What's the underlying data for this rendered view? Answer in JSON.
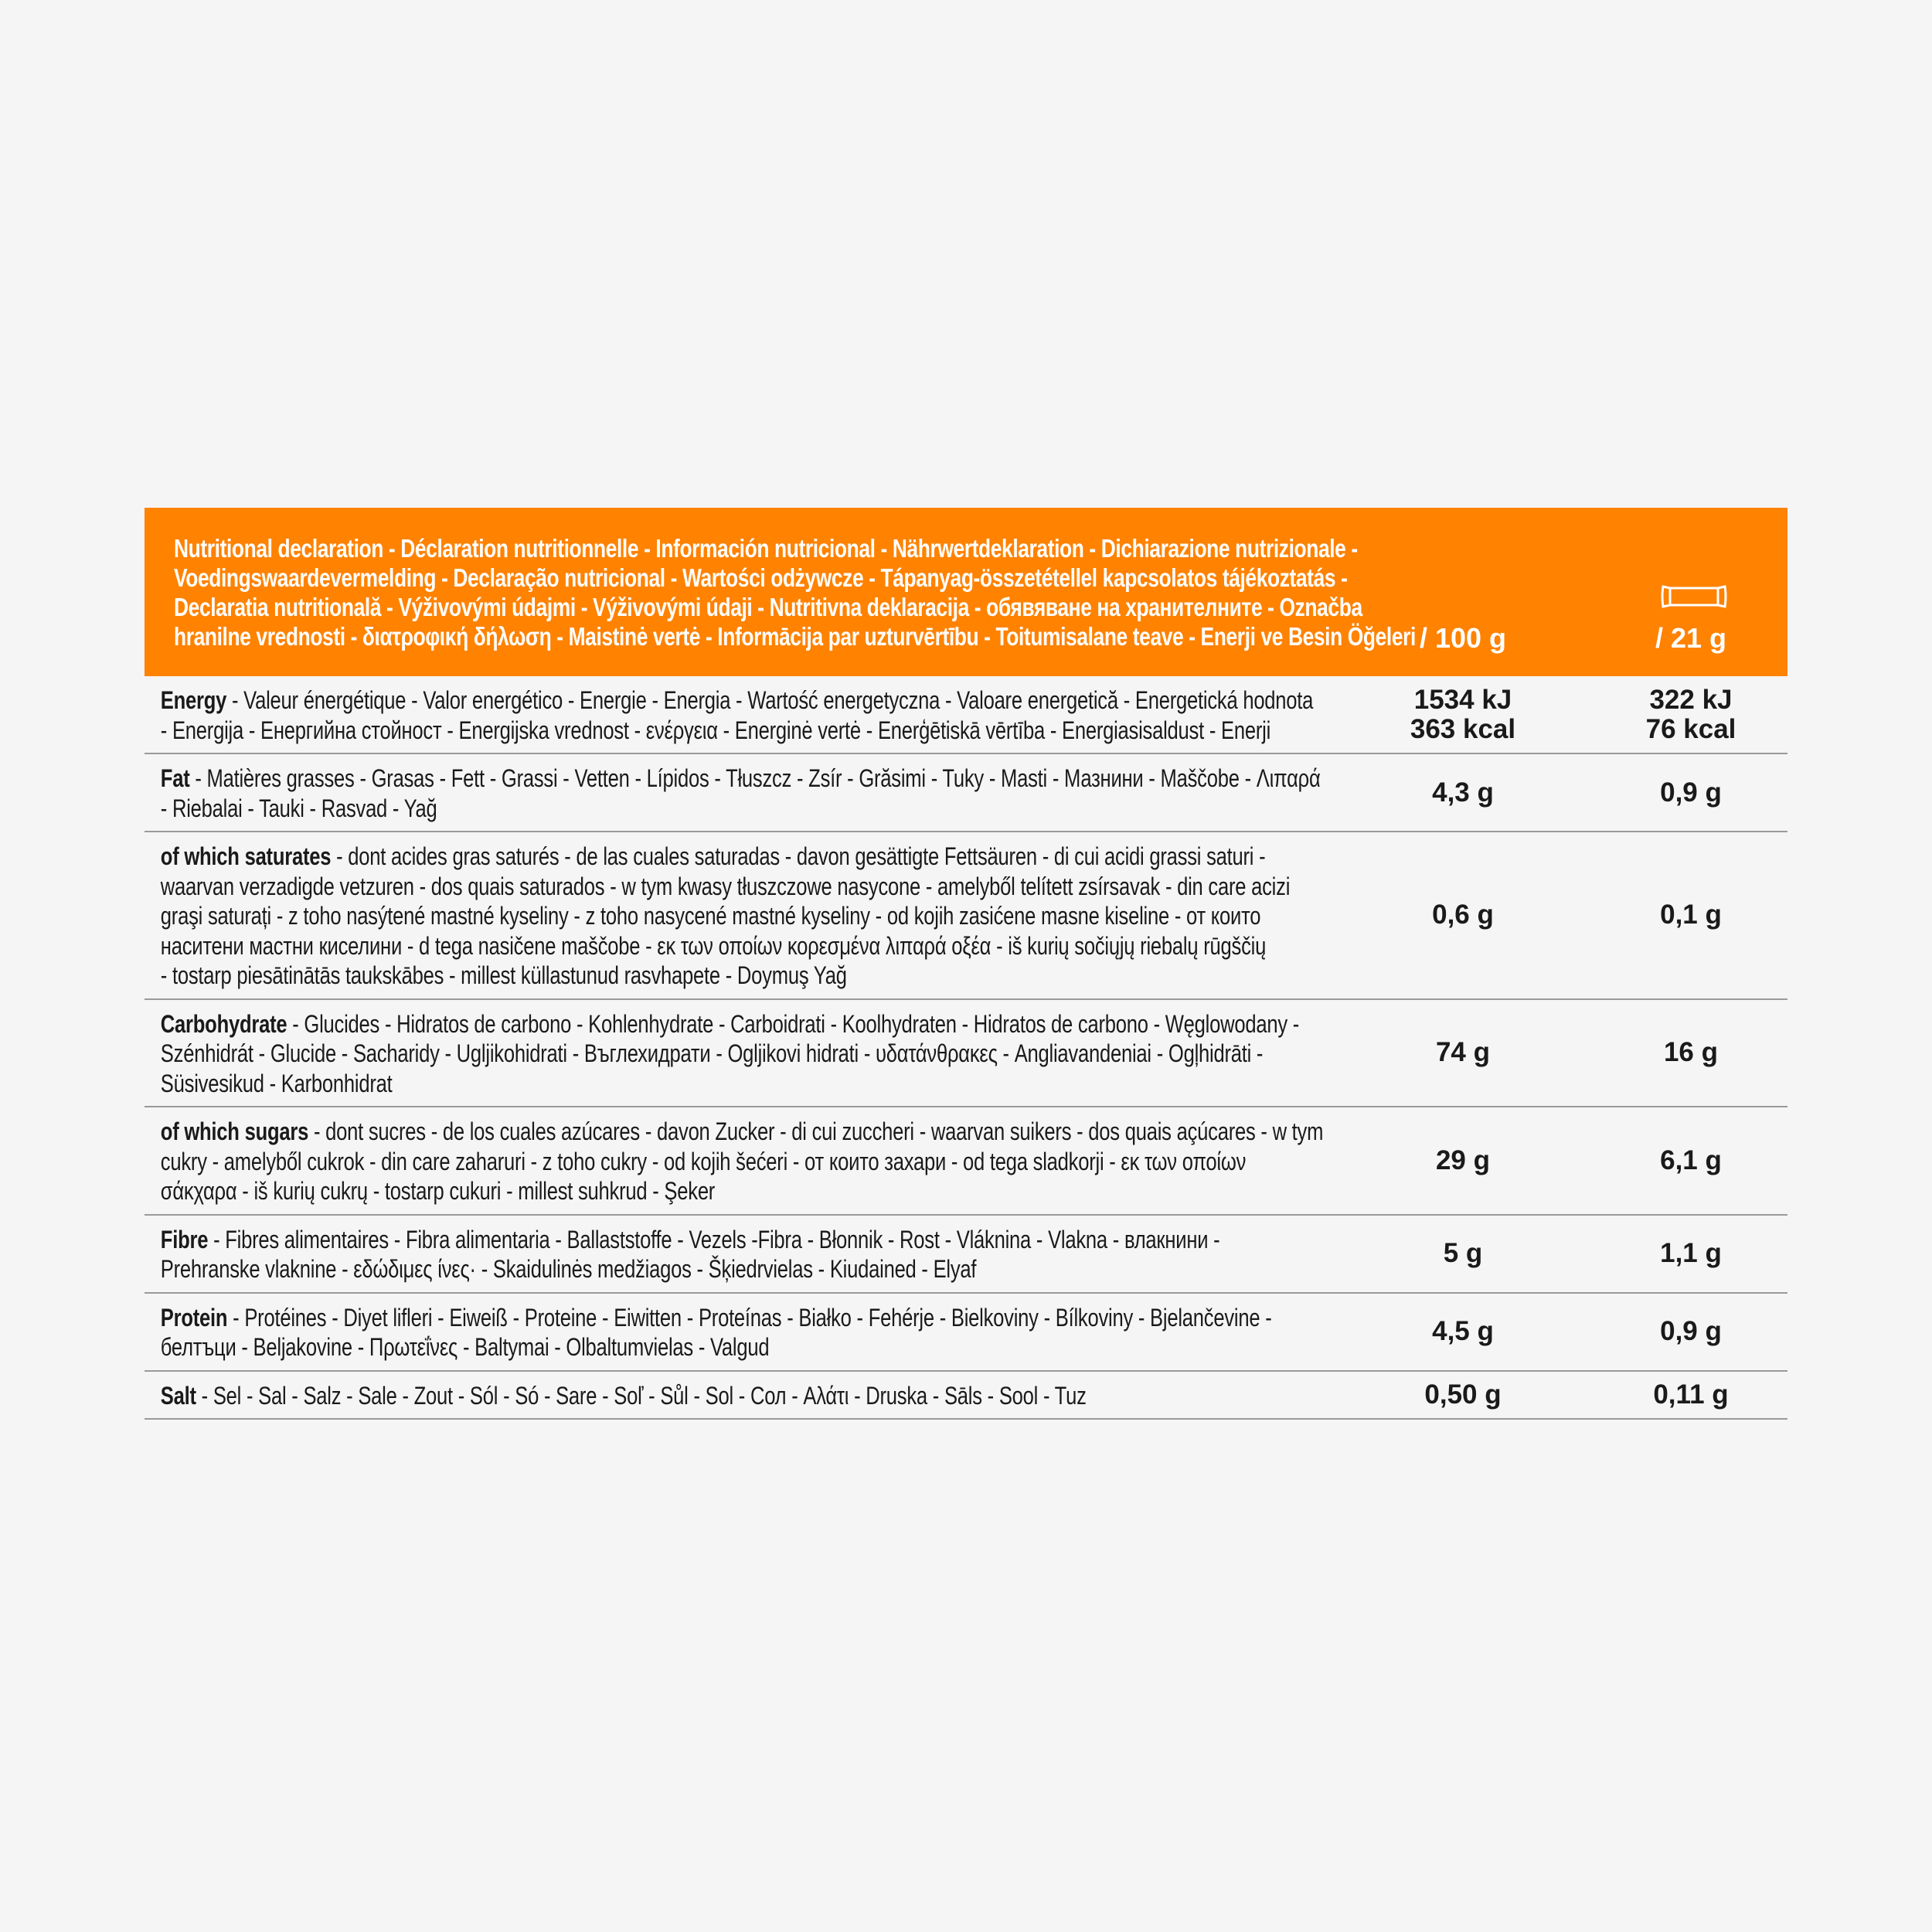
{
  "colors": {
    "header_bg": "#ff8200",
    "header_text": "#ffffff",
    "divider": "#9a9a9a"
  },
  "header": {
    "title_lines": [
      "Nutritional declaration - Déclaration nutritionnelle - Información nutricional - Nährwertdeklaration - Dichiarazione nutrizionale -",
      "Voedingswaardevermelding - Declaração nutricional - Wartości odżywcze - Tápanyag-összetétellel kapcsolatos tájékoztatás  -",
      "Declaratia nutritională - Výživovými údajmi - Výživovými údaji - Nutritivna deklaracija - обявяване на хранителните - Označba",
      "hranilne vrednosti - διατροφική δήλωση - Maistinė vertė - Informācija par uzturvērtību - Toitumisalane teave - Enerji ve Besin Öğeleri"
    ],
    "col1": "/ 100 g",
    "col2": "/ 21 g",
    "col2_icon": "snack-bar-icon"
  },
  "rows": [
    {
      "name": "Energy",
      "lines": [
        " - Valeur énergétique - Valor energético - Energie - Energia - Wartość energetyczna - Valoare energetică - Energetická hodnota",
        "- Energija  - Енергийна стойност - Energijska vrednost - ενέργεια - Energinė vertė - Enerģētiskā vērtība - Energiasisaldust - Enerji"
      ],
      "v1": [
        "1534 kJ",
        "363 kcal"
      ],
      "v2": [
        "322 kJ",
        "76 kcal"
      ]
    },
    {
      "name": "Fat",
      "lines": [
        " - Matières grasses - Grasas - Fett - Grassi - Vetten - Lípidos - Tłuszcz - Zsír - Grăsimi  - Tuky - Masti - Мазнини - Maščobe - Λιπαρά",
        "- Riebalai - Tauki - Rasvad - Yağ"
      ],
      "v1": [
        "4,3 g"
      ],
      "v2": [
        "0,9 g"
      ]
    },
    {
      "name": "of which saturates",
      "lines": [
        " - dont acides gras saturés - de las cuales saturadas  - davon gesättigte Fettsäuren - di cui acidi grassi saturi -",
        "waarvan verzadigde vetzuren - dos quais saturados - w tym kwasy tłuszczowe nasycone - amelyből telített zsírsavak - din care acizi",
        "graşi saturați - z toho nasýtené mastné kyseliny  - z toho nasycené mastné kyseliny - od kojih zasićene masne kiseline - от които",
        "наситени мастни киселини - d tega nasičene maščobe - εκ των οποίων κορεσμένα λιπαρά οξέα - iš kurių sočiųjų riebalų rūgščių",
        "- tostarp piesātinātās taukskābes - millest küllastunud rasvhapete - Doymuş Yağ"
      ],
      "v1": [
        "0,6 g"
      ],
      "v2": [
        "0,1 g"
      ]
    },
    {
      "name": "Carbohydrate",
      "lines": [
        " - Glucides - Hidratos de carbono - Kohlenhydrate - Carboidrati - Koolhydraten - Hidratos de carbono - Węglowodany -",
        "Szénhidrát - Glucide - Sacharidy - Ugljikohidrati - Въглехидрати - Ogljikovi hidrati - υδατάνθρακες - Angliavandeniai - Ogļhidrāti -",
        "Süsivesikud - Karbonhidrat"
      ],
      "v1": [
        "74 g"
      ],
      "v2": [
        "16 g"
      ]
    },
    {
      "name": "of which sugars",
      "lines": [
        " - dont sucres - de los cuales azúcares - davon Zucker - di cui zuccheri - waarvan suikers - dos quais açúcares - w tym",
        "cukry - amelyből cukrok  - din care zaharuri - z toho cukry - od kojih šećeri - от които захари - od tega sladkorji - εκ των οποίων",
        "σάκχαρα - iš kurių cukrų - tostarp cukuri - millest suhkrud - Şeker"
      ],
      "v1": [
        "29 g"
      ],
      "v2": [
        "6,1 g"
      ]
    },
    {
      "name": "Fibre",
      "lines": [
        " - Fibres alimentaires - Fibra alimentaria - Ballaststoffe - Vezels -Fibra - Błonnik - Rost - Vláknina - Vlakna - влакнини -",
        "Prehranske vlaknine - εδώδιμες ίνες· - Skaidulinės medžiagos - Šķiedrvielas - Kiudained - Elyaf"
      ],
      "v1": [
        "5 g"
      ],
      "v2": [
        "1,1 g"
      ]
    },
    {
      "name": "Protein",
      "lines": [
        " - Protéines - Diyet lifleri - Eiweiß - Proteine - Eiwitten - Proteínas - Białko - Fehérje - Bielkoviny - Bílkoviny - Bjelančevine -",
        "белтъци - Beljakovine - Πρωτεΐνες - Baltymai - Olbaltumvielas - Valgud"
      ],
      "v1": [
        "4,5 g"
      ],
      "v2": [
        "0,9 g"
      ]
    },
    {
      "name": "Salt",
      "lines": [
        " - Sel - Sal - Salz - Sale - Zout - Sól - Só - Sare - Soľ - Sůl - Sol - Сол - Αλάτι - Druska - Sāls - Sool - Tuz"
      ],
      "v1": [
        "0,50 g"
      ],
      "v2": [
        "0,11 g"
      ]
    }
  ]
}
